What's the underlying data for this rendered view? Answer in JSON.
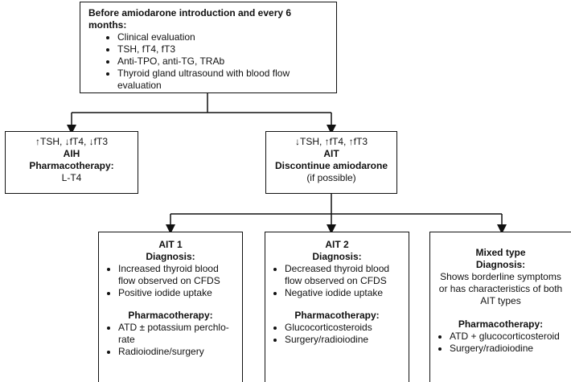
{
  "top": {
    "title": "Before amiodarone introduction and every 6 months:",
    "items": [
      "Clinical evaluation",
      "TSH, fT4, fT3",
      "Anti-TPO, anti-TG, TRAb",
      "Thyroid gland ultrasound with blood flow evaluation"
    ]
  },
  "aih": {
    "labs": "↑TSH, ↓fT4, ↓fT3",
    "name": "AIH",
    "pharm_title": "Pharmacotherapy:",
    "pharm": "L-T4"
  },
  "ait": {
    "labs": "↓TSH, ↑fT4, ↑fT3",
    "name": "AIT",
    "action": "Discontinue amiodarone",
    "note": "(if possible)"
  },
  "ait1": {
    "name": "AIT 1",
    "diag_title": "Diagnosis:",
    "diag": [
      "Increased thyroid blood flow observed on CFDS",
      "Positive iodide uptake"
    ],
    "pharm_title": "Pharmacotherapy:",
    "pharm": [
      "ATD ± potassium perchlo-rate",
      "Radioiodine/surgery"
    ]
  },
  "ait2": {
    "name": "AIT 2",
    "diag_title": "Diagnosis:",
    "diag": [
      "Decreased thyroid blood flow observed on CFDS",
      "Negative iodide uptake"
    ],
    "pharm_title": "Pharmacotherapy:",
    "pharm": [
      "Glucocorticosteroids",
      "Surgery/radioiodine"
    ]
  },
  "mixed": {
    "name": "Mixed type",
    "diag_title": "Diagnosis:",
    "diag": "Shows borderline symptoms or has characteristics of both AIT types",
    "pharm_title": "Pharmacotherapy:",
    "pharm": [
      "ATD + glucocorticosteroid",
      "Surgery/radioiodine"
    ]
  }
}
